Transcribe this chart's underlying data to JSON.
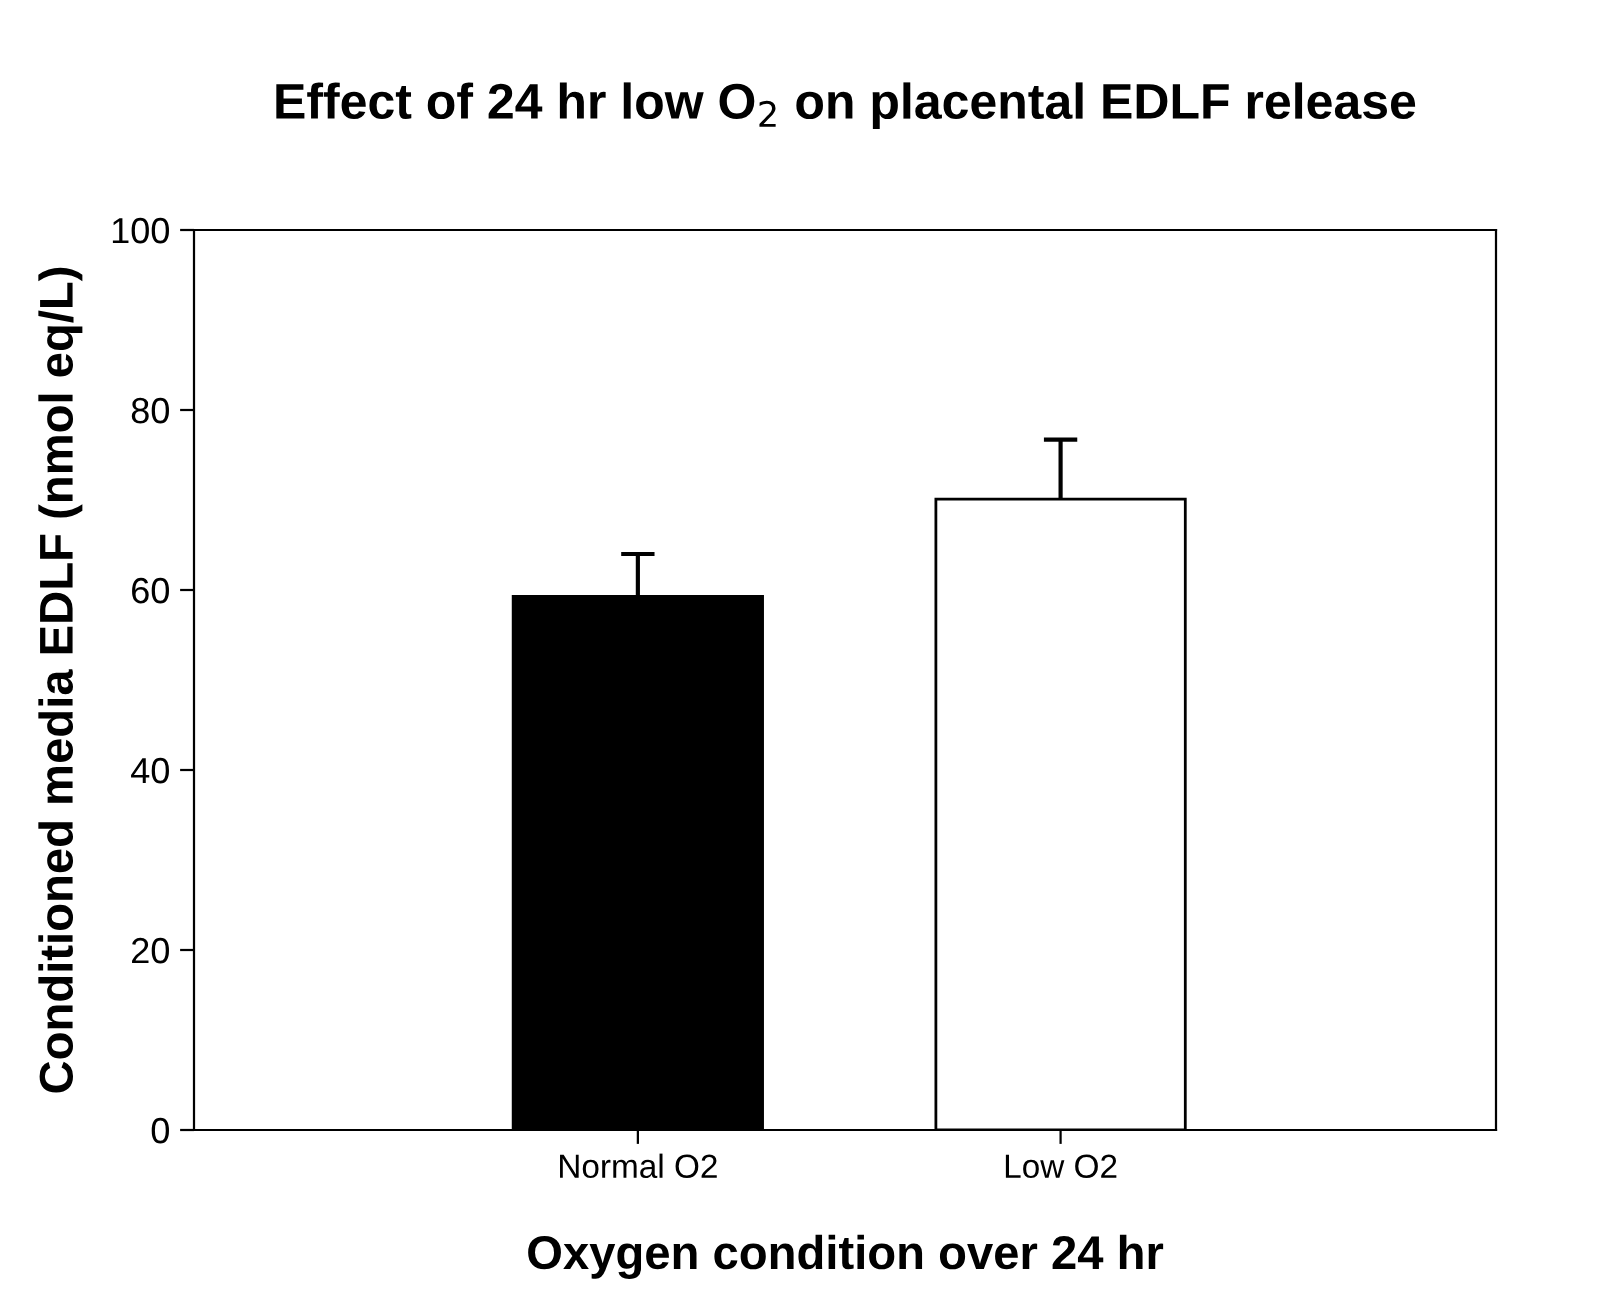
{
  "chart_data": {
    "type": "bar",
    "title": "Effect of 24 hr low O$_{2}$ on placental EDLF release",
    "xlabel": "Oxygen condition over 24 hr",
    "ylabel": "Conditioned media EDLF (nmol eq/L)",
    "categories": [
      "Normal O2",
      "Low O2"
    ],
    "values": [
      59.3,
      70.1
    ],
    "errors": [
      4.7,
      6.6
    ],
    "colors": [
      "#000000",
      "#ffffff"
    ],
    "ylim": [
      0,
      100
    ],
    "yticks": [
      0,
      20,
      40,
      60,
      80,
      100
    ],
    "grid": false
  }
}
